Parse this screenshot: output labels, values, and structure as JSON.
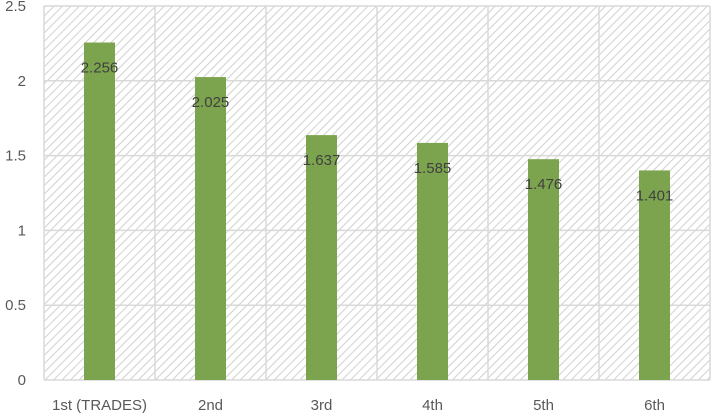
{
  "chart_data": {
    "type": "bar",
    "categories": [
      "1st (TRADES)",
      "2nd",
      "3rd",
      "4th",
      "5th",
      "6th"
    ],
    "values": [
      2.256,
      2.025,
      1.637,
      1.585,
      1.476,
      1.401
    ],
    "data_labels": [
      "2.256",
      "2.025",
      "1.637",
      "1.585",
      "1.476",
      "1.401"
    ],
    "y_ticks": [
      "0",
      "0.5",
      "1",
      "1.5",
      "2",
      "2.5"
    ],
    "ylim": [
      0,
      2.5
    ],
    "title": "",
    "xlabel": "",
    "ylabel": "",
    "grid": true,
    "legend": "none",
    "bar_color": "#7ca44e",
    "background": "hatched-gray"
  }
}
